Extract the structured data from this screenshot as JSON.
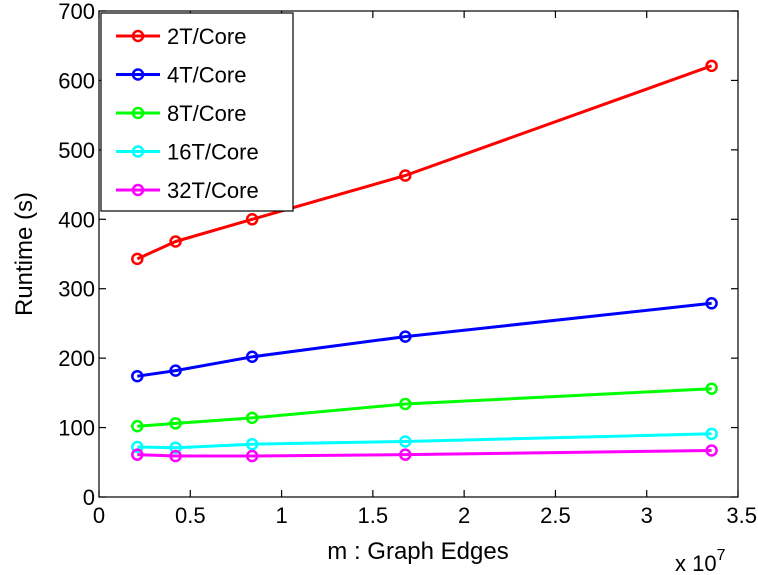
{
  "chart_data": {
    "type": "line",
    "xlabel": "m : Graph Edges",
    "ylabel": "Runtime (s)",
    "x_multiplier_label": "x 10",
    "x_multiplier_exponent": "7",
    "xlim": [
      0,
      35000000
    ],
    "ylim": [
      0,
      700
    ],
    "x_ticks": [
      0,
      5000000,
      10000000,
      15000000,
      20000000,
      25000000,
      30000000,
      35000000
    ],
    "x_tick_labels": [
      "0",
      "0.5",
      "1",
      "1.5",
      "2",
      "2.5",
      "3",
      "3.5"
    ],
    "y_ticks": [
      0,
      100,
      200,
      300,
      400,
      500,
      600,
      700
    ],
    "y_tick_labels": [
      "0",
      "100",
      "200",
      "300",
      "400",
      "500",
      "600",
      "700"
    ],
    "grid": false,
    "legend_position": "top-left",
    "x": [
      2097152,
      4194304,
      8388608,
      16777216,
      33554432
    ],
    "series": [
      {
        "name": "2T/Core",
        "color": "#ff0000",
        "values": [
          343,
          368,
          400,
          463,
          621
        ]
      },
      {
        "name": "4T/Core",
        "color": "#0000ff",
        "values": [
          174,
          182,
          202,
          231,
          279
        ]
      },
      {
        "name": "8T/Core",
        "color": "#00ff00",
        "values": [
          102,
          106,
          114,
          134,
          156
        ]
      },
      {
        "name": "16T/Core",
        "color": "#00ffff",
        "values": [
          72,
          71,
          76,
          80,
          91
        ]
      },
      {
        "name": "32T/Core",
        "color": "#ff00ff",
        "values": [
          61,
          59,
          59,
          61,
          67
        ]
      }
    ]
  }
}
